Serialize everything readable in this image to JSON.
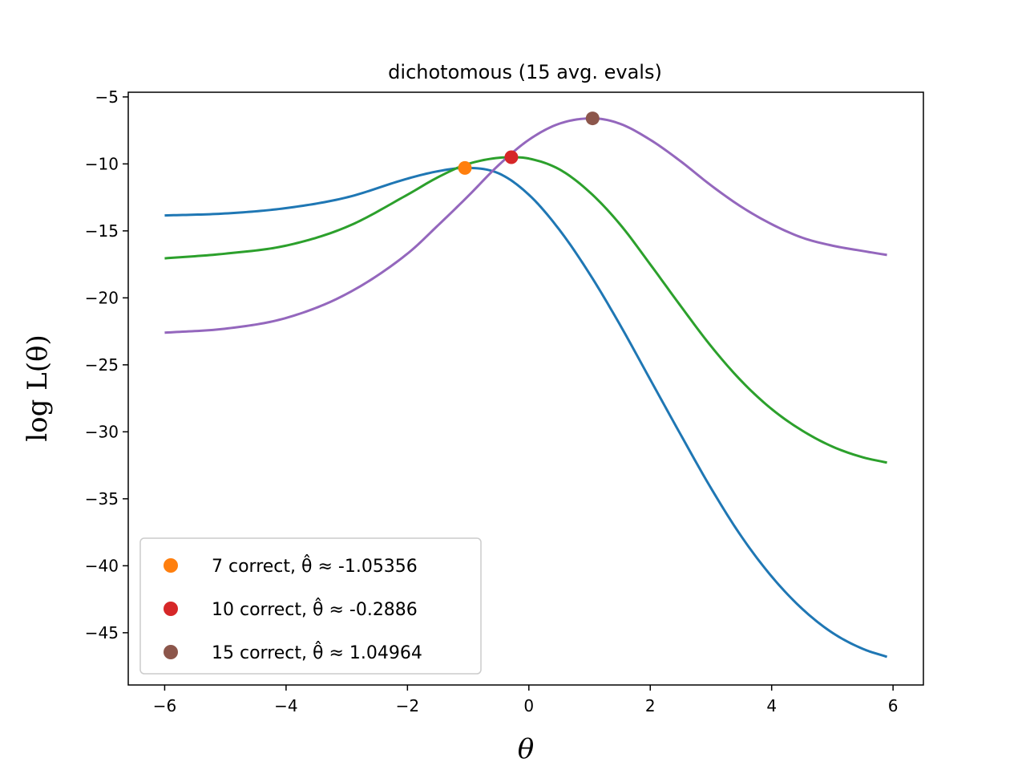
{
  "chart_data": {
    "type": "line",
    "title": "dichotomous (15 avg. evals)",
    "xlabel": "θ",
    "ylabel": "log L(θ)",
    "xlim": [
      -6.6,
      6.5
    ],
    "ylim": [
      -48.9,
      -4.65
    ],
    "x_ticks": [
      -6,
      -4,
      -2,
      0,
      2,
      4,
      6
    ],
    "x_tick_labels": [
      "−6",
      "−4",
      "−2",
      "0",
      "2",
      "4",
      "6"
    ],
    "y_ticks": [
      -5,
      -10,
      -15,
      -20,
      -25,
      -30,
      -35,
      -40,
      -45
    ],
    "y_tick_labels": [
      "−5",
      "−10",
      "−15",
      "−20",
      "−25",
      "−30",
      "−35",
      "−40",
      "−45"
    ],
    "grid": false,
    "legend_position": "lower-left",
    "series": [
      {
        "color": "#1f77b4",
        "x": [
          -6,
          -5,
          -4,
          -3,
          -2,
          -1.5,
          -1.05,
          -0.5,
          0,
          0.5,
          1,
          1.5,
          2,
          2.5,
          3,
          3.5,
          4,
          4.5,
          5,
          5.5,
          5.9
        ],
        "y": [
          -13.85,
          -13.7,
          -13.3,
          -12.5,
          -11.1,
          -10.55,
          -10.3,
          -10.7,
          -12.3,
          -14.9,
          -18.2,
          -22,
          -26.1,
          -30.2,
          -34.2,
          -37.8,
          -40.8,
          -43.2,
          -45,
          -46.2,
          -46.8
        ]
      },
      {
        "color": "#2ca02c",
        "x": [
          -6,
          -5,
          -4,
          -3,
          -2,
          -1.5,
          -1,
          -0.29,
          0,
          0.5,
          1,
          1.5,
          2,
          2.5,
          3,
          3.5,
          4,
          4.5,
          5,
          5.5,
          5.9
        ],
        "y": [
          -17.05,
          -16.7,
          -16.1,
          -14.7,
          -12.3,
          -11,
          -10,
          -9.5,
          -9.6,
          -10.4,
          -12.1,
          -14.5,
          -17.5,
          -20.6,
          -23.6,
          -26.2,
          -28.3,
          -29.9,
          -31.1,
          -31.9,
          -32.3
        ]
      },
      {
        "color": "#9467bd",
        "x": [
          -6,
          -5,
          -4,
          -3,
          -2,
          -1.5,
          -1,
          -0.5,
          0,
          0.5,
          1.05,
          1.5,
          2,
          2.5,
          3,
          3.5,
          4,
          4.5,
          5,
          5.5,
          5.9
        ],
        "y": [
          -22.6,
          -22.3,
          -21.5,
          -19.7,
          -16.7,
          -14.6,
          -12.4,
          -10.1,
          -8.2,
          -7,
          -6.6,
          -7,
          -8.2,
          -9.8,
          -11.6,
          -13.2,
          -14.5,
          -15.5,
          -16.1,
          -16.5,
          -16.8
        ]
      }
    ],
    "points": [
      {
        "x": -1.05356,
        "y": -10.3,
        "color": "#ff7f0e",
        "label": "7 correct, θ̂ ≈ -1.05356"
      },
      {
        "x": -0.2886,
        "y": -9.5,
        "color": "#d62728",
        "label": "10 correct, θ̂ ≈ -0.2886"
      },
      {
        "x": 1.04964,
        "y": -6.6,
        "color": "#8c564b",
        "label": "15 correct, θ̂ ≈ 1.04964"
      }
    ]
  }
}
